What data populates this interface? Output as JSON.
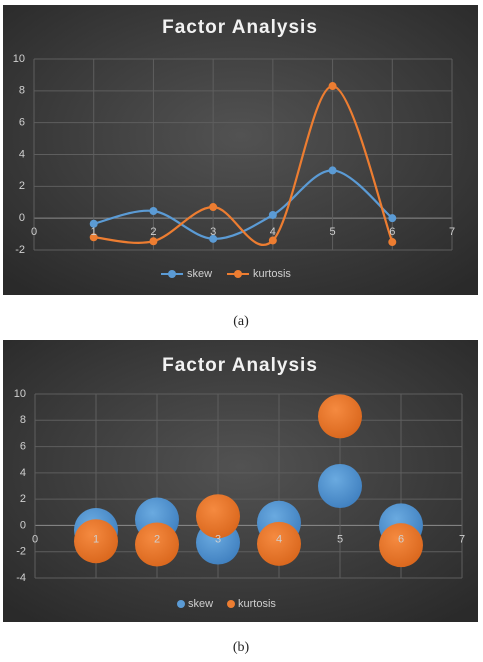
{
  "chart_data": [
    {
      "type": "line",
      "smooth": true,
      "title": "Factor Analysis",
      "caption": "(a)",
      "x": [
        1,
        2,
        3,
        4,
        5,
        6
      ],
      "series": [
        {
          "name": "skew",
          "color": "#5b9bd5",
          "values": [
            -0.35,
            0.45,
            -1.3,
            0.2,
            3.0,
            0.0
          ]
        },
        {
          "name": "kurtosis",
          "color": "#ed7d31",
          "values": [
            -1.2,
            -1.45,
            0.7,
            -1.4,
            8.3,
            -1.5
          ]
        }
      ],
      "xlim": [
        0,
        7
      ],
      "xticks": [
        0,
        1,
        2,
        3,
        4,
        5,
        6,
        7
      ],
      "ylim": [
        -2,
        10
      ],
      "yticks": [
        -2,
        0,
        2,
        4,
        6,
        8,
        10
      ],
      "grid": true,
      "legend": "bottom"
    },
    {
      "type": "bubble",
      "title": "Factor Analysis",
      "caption": "(b)",
      "x": [
        1,
        2,
        3,
        4,
        5,
        6
      ],
      "series": [
        {
          "name": "skew",
          "color": "#5b9bd5",
          "values": [
            -0.35,
            0.45,
            -1.3,
            0.2,
            3.0,
            0.0
          ]
        },
        {
          "name": "kurtosis",
          "color": "#ed7d31",
          "values": [
            -1.2,
            -1.45,
            0.7,
            -1.4,
            8.3,
            -1.5
          ]
        }
      ],
      "xlim": [
        0,
        7
      ],
      "xticks": [
        0,
        1,
        2,
        3,
        4,
        5,
        6,
        7
      ],
      "ylim": [
        -4,
        10
      ],
      "yticks": [
        -4,
        -2,
        0,
        2,
        4,
        6,
        8,
        10
      ],
      "grid": true,
      "legend": "bottom"
    }
  ]
}
